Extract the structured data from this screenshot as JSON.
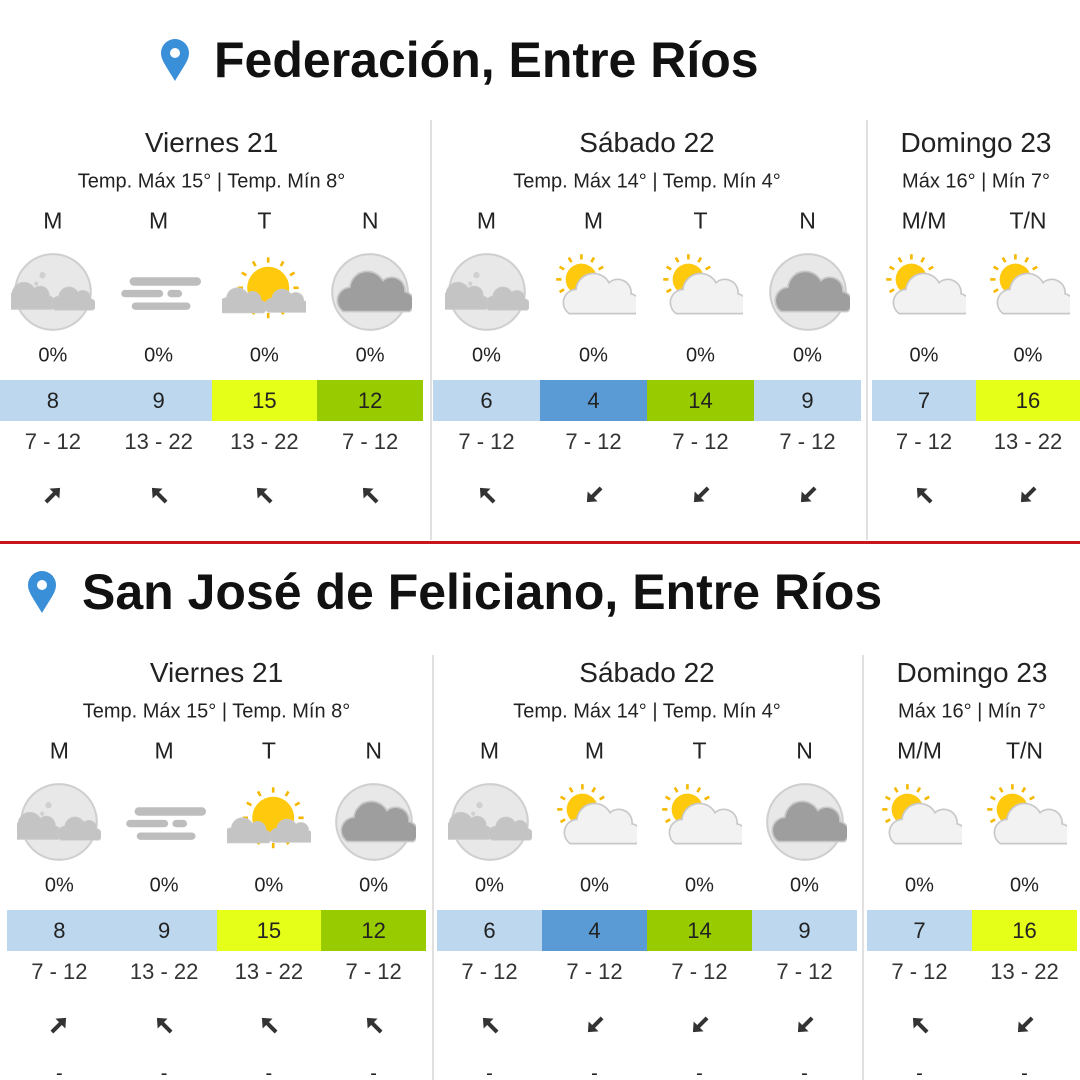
{
  "locations": [
    {
      "title": "Federación, Entre Ríos",
      "days": [
        {
          "name": "Viernes 21",
          "summary": "Temp. Máx 15° | Temp. Mín 8°",
          "periods": [
            {
              "label": "M",
              "rain": "0%",
              "temp": 8,
              "color": "#bcd7ee",
              "wind": "7 - 12"
            },
            {
              "label": "M",
              "rain": "0%",
              "temp": 9,
              "color": "#bcd7ee",
              "wind": "13 - 22"
            },
            {
              "label": "T",
              "rain": "0%",
              "temp": 15,
              "color": "#e5ff19",
              "wind": "13 - 22"
            },
            {
              "label": "N",
              "rain": "0%",
              "temp": 12,
              "color": "#99cc00",
              "wind": "7 - 12"
            }
          ]
        },
        {
          "name": "Sábado 22",
          "summary": "Temp. Máx 14° | Temp. Mín 4°",
          "periods": [
            {
              "label": "M",
              "rain": "0%",
              "temp": 6,
              "color": "#bcd7ee",
              "wind": "7 - 12"
            },
            {
              "label": "M",
              "rain": "0%",
              "temp": 4,
              "color": "#5b9bd5",
              "wind": "7 - 12"
            },
            {
              "label": "T",
              "rain": "0%",
              "temp": 14,
              "color": "#99cc00",
              "wind": "7 - 12"
            },
            {
              "label": "N",
              "rain": "0%",
              "temp": 9,
              "color": "#bcd7ee",
              "wind": "7 - 12"
            }
          ]
        },
        {
          "name": "Domingo 23",
          "summary": "Máx 16° | Mín 7°",
          "periods": [
            {
              "label": "M/M",
              "rain": "0%",
              "temp": 7,
              "color": "#bcd7ee",
              "wind": "7 - 12"
            },
            {
              "label": "T/N",
              "rain": "0%",
              "temp": 16,
              "color": "#e5ff19",
              "wind": "13 - 22"
            }
          ]
        }
      ]
    },
    {
      "title": "San José de Feliciano, Entre Ríos",
      "days": [
        {
          "name": "Viernes 21",
          "summary": "Temp. Máx 15° | Temp. Mín 8°",
          "periods": [
            {
              "label": "M",
              "rain": "0%",
              "temp": 8,
              "color": "#bcd7ee",
              "wind": "7 - 12",
              "extra": "-"
            },
            {
              "label": "M",
              "rain": "0%",
              "temp": 9,
              "color": "#bcd7ee",
              "wind": "13 - 22",
              "extra": "-"
            },
            {
              "label": "T",
              "rain": "0%",
              "temp": 15,
              "color": "#e5ff19",
              "wind": "13 - 22",
              "extra": "-"
            },
            {
              "label": "N",
              "rain": "0%",
              "temp": 12,
              "color": "#99cc00",
              "wind": "7 - 12",
              "extra": "-"
            }
          ]
        },
        {
          "name": "Sábado 22",
          "summary": "Temp. Máx 14° | Temp. Mín 4°",
          "periods": [
            {
              "label": "M",
              "rain": "0%",
              "temp": 6,
              "color": "#bcd7ee",
              "wind": "7 - 12",
              "extra": "-"
            },
            {
              "label": "M",
              "rain": "0%",
              "temp": 4,
              "color": "#5b9bd5",
              "wind": "7 - 12",
              "extra": "-"
            },
            {
              "label": "T",
              "rain": "0%",
              "temp": 14,
              "color": "#99cc00",
              "wind": "7 - 12",
              "extra": "-"
            },
            {
              "label": "N",
              "rain": "0%",
              "temp": 9,
              "color": "#bcd7ee",
              "wind": "7 - 12",
              "extra": "-"
            }
          ]
        },
        {
          "name": "Domingo 23",
          "summary": "Máx 16° | Mín 7°",
          "periods": [
            {
              "label": "M/M",
              "rain": "0%",
              "temp": 7,
              "color": "#bcd7ee",
              "wind": "7 - 12",
              "extra": "-"
            },
            {
              "label": "T/N",
              "rain": "0%",
              "temp": 16,
              "color": "#e5ff19",
              "wind": "13 - 22",
              "extra": "-"
            }
          ]
        }
      ]
    }
  ]
}
